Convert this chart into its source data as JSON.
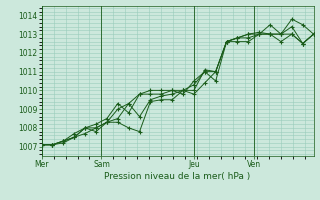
{
  "title": "Pression niveau de la mer( hPa )",
  "bg_color": "#cce8dc",
  "grid_color": "#99ccbb",
  "line_color": "#1a5c1a",
  "ylim": [
    1006.5,
    1014.5
  ],
  "yticks": [
    1007,
    1008,
    1009,
    1010,
    1011,
    1012,
    1013,
    1014
  ],
  "day_labels": [
    "Mer",
    "Sam",
    "Jeu",
    "Ven"
  ],
  "day_positions": [
    0,
    0.22,
    0.56,
    0.78
  ],
  "series1": [
    0.0,
    0.02,
    0.07,
    0.11,
    0.14,
    0.22,
    0.28,
    0.33,
    0.38,
    0.42,
    0.45,
    0.49,
    0.53,
    0.56,
    0.6,
    0.63,
    0.67,
    0.71,
    0.75,
    0.78,
    0.82,
    0.86,
    0.89,
    0.93,
    0.96,
    1.0
  ],
  "s1": [
    1007.1,
    1007.1,
    1007.3,
    1007.7,
    1008.0,
    1008.0,
    1008.3,
    1008.5,
    1009.3,
    1009.8,
    1010.0,
    1010.0,
    1010.0,
    1009.8,
    1010.5,
    1011.0,
    1010.5,
    1012.6,
    1012.8,
    1012.8,
    1013.0,
    1013.5,
    1013.0,
    1013.8,
    1013.5,
    1013.0
  ],
  "s2": [
    1007.1,
    1007.1,
    1007.3,
    1007.5,
    1008.0,
    1008.2,
    1008.5,
    1009.3,
    1008.8,
    1009.8,
    1009.8,
    1009.8,
    1010.0,
    1010.0,
    1010.0,
    1011.1,
    1011.0,
    1012.6,
    1012.8,
    1013.0,
    1013.1,
    1013.0,
    1013.0,
    1013.4,
    1012.5,
    1013.0
  ],
  "s3": [
    1007.1,
    1007.1,
    1007.3,
    1007.5,
    1007.7,
    1008.0,
    1008.3,
    1009.0,
    1009.3,
    1008.6,
    1009.5,
    1009.7,
    1009.8,
    1010.0,
    1009.8,
    1010.4,
    1011.0,
    1012.6,
    1012.8,
    1013.0,
    1013.0,
    1013.0,
    1013.0,
    1013.0,
    1012.5,
    1013.0
  ],
  "s4": [
    1007.1,
    1007.1,
    1007.2,
    1007.5,
    1008.0,
    1007.8,
    1008.3,
    1008.3,
    1008.0,
    1007.8,
    1009.4,
    1009.5,
    1009.5,
    1010.0,
    1010.3,
    1011.0,
    1011.0,
    1012.6,
    1012.6,
    1012.6,
    1013.0,
    1013.0,
    1012.6,
    1013.0,
    1012.5,
    1013.0
  ],
  "n_points": 26
}
